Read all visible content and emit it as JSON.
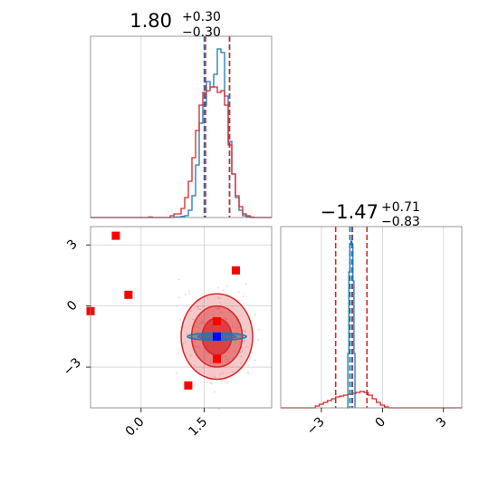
{
  "chart_data": [
    {
      "panel": "top-left",
      "type": "histogram",
      "title": {
        "value": "1.80",
        "upper": "+0.30",
        "lower": "−0.30"
      },
      "xlim": [
        -1.2,
        3.1
      ],
      "ylim": [
        0,
        1.0
      ],
      "grid": true,
      "bin_start": -1.2,
      "bin_width": 0.086,
      "series": [
        {
          "color": "#1f77b4",
          "values": [
            0,
            0,
            0,
            0,
            0,
            0,
            0,
            0,
            0,
            0,
            0,
            0,
            0,
            0,
            0,
            0,
            0,
            0,
            0,
            0,
            0,
            0,
            0,
            0.003,
            0.003,
            0.006,
            0.01,
            0.04,
            0.12,
            0.29,
            0.52,
            0.62,
            0.75,
            0.72,
            0.79,
            0.93,
            0.91,
            0.67,
            0.42,
            0.24,
            0.11,
            0.04,
            0.01,
            0.003,
            0,
            0,
            0,
            0,
            0,
            0
          ],
          "vlines": [
            1.5,
            2.1
          ]
        },
        {
          "color": "#d62728",
          "values": [
            0,
            0,
            0,
            0,
            0,
            0,
            0,
            0,
            0,
            0,
            0,
            0,
            0,
            0,
            0,
            0,
            0.003,
            0,
            0,
            0,
            0,
            0,
            0.01,
            0.02,
            0.02,
            0.05,
            0.11,
            0.2,
            0.33,
            0.48,
            0.62,
            0.69,
            0.7,
            0.72,
            0.72,
            0.69,
            0.7,
            0.62,
            0.4,
            0.24,
            0.12,
            0.06,
            0.02,
            0.01,
            0.003,
            0,
            0,
            0,
            0,
            0
          ],
          "vlines": [
            1.53,
            2.1
          ]
        }
      ]
    },
    {
      "panel": "bottom-left",
      "type": "scatter-contour",
      "xlim": [
        -1.2,
        3.1
      ],
      "ylim": [
        -5.0,
        3.9
      ],
      "xticks": [
        "0.0",
        "1.5"
      ],
      "xtick_values": [
        0.0,
        1.5
      ],
      "yticks": [
        "3",
        "0",
        "−3"
      ],
      "ytick_values": [
        3,
        0,
        -3
      ],
      "grid": true,
      "red_contours": [
        {
          "cx": 1.8,
          "cy": -1.5,
          "rx": 0.85,
          "ry": 2.1,
          "opacity": 0.25
        },
        {
          "cx": 1.8,
          "cy": -1.5,
          "rx": 0.6,
          "ry": 1.5,
          "opacity": 0.45
        },
        {
          "cx": 1.8,
          "cy": -1.5,
          "rx": 0.35,
          "ry": 0.9,
          "opacity": 0.7
        }
      ],
      "blue_contours": [
        {
          "cx": 1.8,
          "cy": -1.5,
          "rx": 0.7,
          "ry": 0.18
        },
        {
          "cx": 1.8,
          "cy": -1.5,
          "rx": 0.45,
          "ry": 0.12
        }
      ],
      "red_points": [
        {
          "x": -0.6,
          "y": 3.45
        },
        {
          "x": 2.25,
          "y": 1.75
        },
        {
          "x": -0.3,
          "y": 0.55
        },
        {
          "x": -1.2,
          "y": -0.25
        },
        {
          "x": 1.8,
          "y": -0.75
        },
        {
          "x": 1.8,
          "y": -2.6
        },
        {
          "x": 1.12,
          "y": -3.9
        }
      ],
      "blue_points": [
        {
          "x": 1.8,
          "y": -1.5
        }
      ]
    },
    {
      "panel": "bottom-right",
      "type": "histogram",
      "title": {
        "value": "−1.47",
        "upper": "+0.71",
        "lower": "−0.83"
      },
      "xlim": [
        -5.0,
        3.9
      ],
      "ylim": [
        0,
        1.0
      ],
      "xticks": [
        "−3",
        "0",
        "3"
      ],
      "xtick_values": [
        -3,
        0,
        3
      ],
      "grid": true,
      "series": [
        {
          "color": "#d62728",
          "shape": [
            [
              -5.0,
              0
            ],
            [
              -3.5,
              0
            ],
            [
              -3.3,
              0.01
            ],
            [
              -3.1,
              0.02
            ],
            [
              -2.9,
              0.03
            ],
            [
              -2.7,
              0.04
            ],
            [
              -2.5,
              0.05
            ],
            [
              -2.3,
              0.06
            ],
            [
              -2.1,
              0.065
            ],
            [
              -1.9,
              0.07
            ],
            [
              -1.7,
              0.075
            ],
            [
              -1.5,
              0.08
            ],
            [
              -1.3,
              0.085
            ],
            [
              -1.1,
              0.09
            ],
            [
              -0.9,
              0.085
            ],
            [
              -0.7,
              0.07
            ],
            [
              -0.5,
              0.05
            ],
            [
              -0.3,
              0.03
            ],
            [
              -0.1,
              0.015
            ],
            [
              0.1,
              0.005
            ],
            [
              0.3,
              0
            ],
            [
              3.9,
              0
            ]
          ],
          "vlines": [
            -2.3,
            -1.47,
            -0.76
          ]
        },
        {
          "color": "#1f77b4",
          "shape": [
            [
              -1.75,
              0
            ],
            [
              -1.7,
              0.3
            ],
            [
              -1.65,
              0.75
            ],
            [
              -1.6,
              0.9
            ],
            [
              -1.55,
              0.92
            ],
            [
              -1.5,
              0.9
            ],
            [
              -1.45,
              0.7
            ],
            [
              -1.4,
              0.3
            ],
            [
              -1.35,
              0
            ]
          ],
          "vlines": [
            -1.6,
            -1.5
          ]
        }
      ]
    }
  ]
}
